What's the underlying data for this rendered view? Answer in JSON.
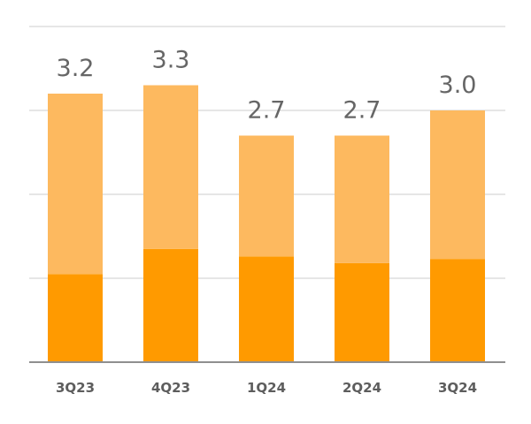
{
  "chart_data": {
    "type": "bar",
    "stacked": true,
    "categories": [
      "3Q23",
      "4Q23",
      "1Q24",
      "2Q24",
      "3Q24"
    ],
    "series": [
      {
        "values": [
          1.05,
          1.35,
          1.26,
          1.18,
          1.23
        ],
        "color": "#ff9a00"
      },
      {
        "values": [
          2.15,
          1.95,
          1.44,
          1.52,
          1.77
        ],
        "color": "#fdb95f"
      }
    ],
    "totals": [
      "3.2",
      "3.3",
      "2.7",
      "2.7",
      "3.0"
    ],
    "ylim": [
      0,
      4
    ],
    "grid": true,
    "title": "",
    "xlabel": "",
    "ylabel": "",
    "colors": {
      "grid": "#e6e6e6",
      "axis": "#8f8f8f",
      "label": "#666666",
      "tick": "#5d5d5d"
    }
  }
}
